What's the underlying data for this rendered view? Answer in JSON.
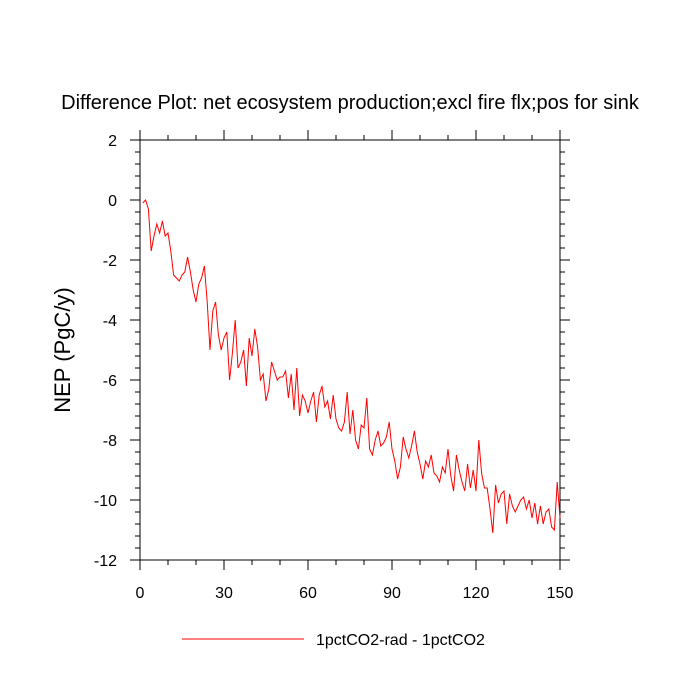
{
  "chart_data": {
    "type": "line",
    "title": "Difference Plot: net ecosystem production;excl fire flx;pos for sink",
    "xlabel": "",
    "ylabel": "NEP  (PgC/y)",
    "xlim": [
      0,
      150
    ],
    "ylim": [
      -12,
      2
    ],
    "xticks": [
      0,
      30,
      60,
      90,
      120,
      150
    ],
    "yticks": [
      2,
      0,
      -2,
      -4,
      -6,
      -8,
      -10,
      -12
    ],
    "grid": false,
    "legend_position": "bottom-center",
    "series": [
      {
        "name": "1pctCO2-rad - 1pctCO2",
        "color": "#ff0000",
        "x": [
          1,
          2,
          3,
          4,
          5,
          6,
          7,
          8,
          9,
          10,
          11,
          12,
          13,
          14,
          15,
          16,
          17,
          18,
          19,
          20,
          21,
          22,
          23,
          24,
          25,
          26,
          27,
          28,
          29,
          30,
          31,
          32,
          33,
          34,
          35,
          36,
          37,
          38,
          39,
          40,
          41,
          42,
          43,
          44,
          45,
          46,
          47,
          48,
          49,
          50,
          51,
          52,
          53,
          54,
          55,
          56,
          57,
          58,
          59,
          60,
          61,
          62,
          63,
          64,
          65,
          66,
          67,
          68,
          69,
          70,
          71,
          72,
          73,
          74,
          75,
          76,
          77,
          78,
          79,
          80,
          81,
          82,
          83,
          84,
          85,
          86,
          87,
          88,
          89,
          90,
          91,
          92,
          93,
          94,
          95,
          96,
          97,
          98,
          99,
          100,
          101,
          102,
          103,
          104,
          105,
          106,
          107,
          108,
          109,
          110,
          111,
          112,
          113,
          114,
          115,
          116,
          117,
          118,
          119,
          120,
          121,
          122,
          123,
          124,
          125,
          126,
          127,
          128,
          129,
          130,
          131,
          132,
          133,
          134,
          135,
          136,
          137,
          138,
          139,
          140,
          141,
          142,
          143,
          144,
          145,
          146,
          147,
          148,
          149,
          150
        ],
        "values": [
          -0.1,
          0.0,
          -0.3,
          -1.7,
          -1.2,
          -0.8,
          -1.1,
          -0.7,
          -1.2,
          -1.1,
          -1.7,
          -2.5,
          -2.6,
          -2.7,
          -2.5,
          -2.4,
          -1.9,
          -2.4,
          -3.0,
          -3.4,
          -2.8,
          -2.6,
          -2.2,
          -3.4,
          -5.0,
          -3.7,
          -3.4,
          -4.5,
          -5.0,
          -4.6,
          -4.4,
          -6.0,
          -5.1,
          -4.0,
          -5.6,
          -5.4,
          -5.0,
          -6.2,
          -4.6,
          -5.2,
          -4.3,
          -4.9,
          -6.0,
          -5.8,
          -6.7,
          -6.3,
          -5.4,
          -5.7,
          -6.0,
          -5.9,
          -5.9,
          -5.7,
          -6.6,
          -5.8,
          -7.0,
          -5.6,
          -7.2,
          -6.5,
          -6.7,
          -7.1,
          -6.7,
          -6.4,
          -7.4,
          -6.5,
          -6.2,
          -6.9,
          -6.7,
          -7.3,
          -6.5,
          -7.3,
          -7.6,
          -7.7,
          -7.4,
          -6.4,
          -7.8,
          -7.0,
          -8.0,
          -8.3,
          -7.5,
          -7.6,
          -6.6,
          -8.3,
          -8.5,
          -8.0,
          -7.7,
          -8.2,
          -8.1,
          -7.9,
          -7.4,
          -8.3,
          -8.7,
          -9.3,
          -8.9,
          -7.9,
          -8.3,
          -8.6,
          -8.2,
          -7.7,
          -8.4,
          -8.8,
          -9.3,
          -8.7,
          -8.9,
          -8.5,
          -9.1,
          -9.2,
          -9.4,
          -8.9,
          -9.1,
          -8.3,
          -9.2,
          -9.7,
          -8.5,
          -9.0,
          -9.4,
          -9.7,
          -8.8,
          -9.6,
          -9.0,
          -9.7,
          -8.0,
          -9.1,
          -9.6,
          -9.6,
          -10.3,
          -11.1,
          -9.5,
          -10.1,
          -9.8,
          -9.7,
          -10.8,
          -9.8,
          -10.2,
          -10.4,
          -10.2,
          -10.0,
          -9.9,
          -10.3,
          -10.0,
          -10.6,
          -10.1,
          -10.8,
          -10.2,
          -10.8,
          -10.4,
          -10.3,
          -10.9,
          -11.0,
          -9.4,
          -10.6
        ]
      }
    ]
  }
}
